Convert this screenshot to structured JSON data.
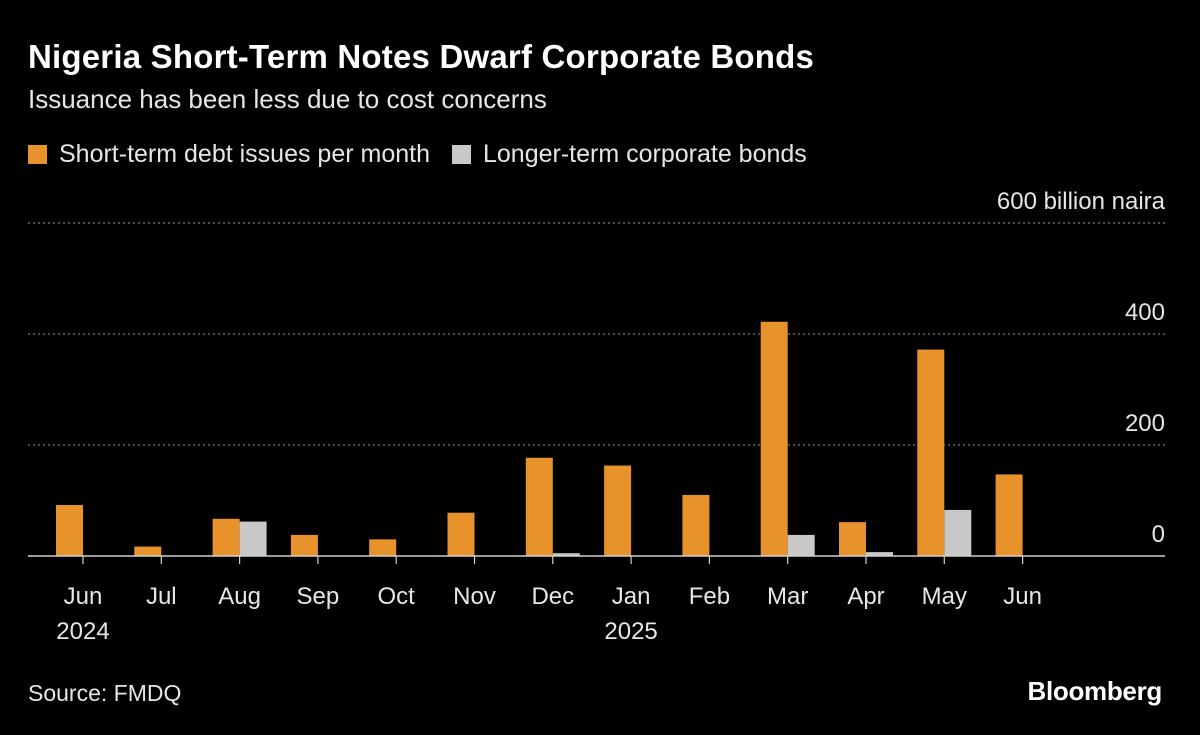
{
  "header": {
    "title": "Nigeria Short-Term Notes Dwarf Corporate Bonds",
    "subtitle": "Issuance has been less due to cost concerns"
  },
  "footer": {
    "source": "Source: FMDQ",
    "brand": "Bloomberg"
  },
  "colors": {
    "background": "#000000",
    "short_term": "#e8922b",
    "corporate": "#c8c8c8",
    "grid": "#7a7a7a",
    "text": "#e6e6e6"
  },
  "chart_data": {
    "type": "bar",
    "categories": [
      "Jun",
      "Jul",
      "Aug",
      "Sep",
      "Oct",
      "Nov",
      "Dec",
      "Jan",
      "Feb",
      "Mar",
      "Apr",
      "May",
      "Jun"
    ],
    "year_labels": [
      {
        "category_index": 0,
        "label": "2024"
      },
      {
        "category_index": 7,
        "label": "2025"
      }
    ],
    "series": [
      {
        "name": "Short-term debt issues per month",
        "color": "#e8922b",
        "values": [
          92,
          17,
          67,
          38,
          30,
          78,
          177,
          163,
          110,
          422,
          61,
          372,
          147
        ]
      },
      {
        "name": "Longer-term corporate bonds",
        "color": "#c8c8c8",
        "values": [
          0,
          0,
          62,
          0,
          0,
          0,
          5,
          0,
          0,
          38,
          7,
          83,
          0
        ]
      }
    ],
    "ylim": [
      0,
      600
    ],
    "yticks": [
      0,
      200,
      400,
      600
    ],
    "ytick_labels": [
      "0",
      "200",
      "400",
      "600 billion naira"
    ],
    "grid": true,
    "legend_position": "top-left"
  }
}
